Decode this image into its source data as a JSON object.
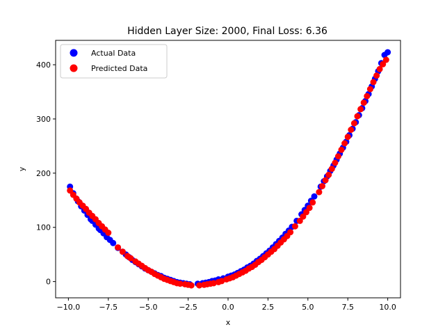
{
  "chart_data": {
    "type": "scatter",
    "title": "Hidden Layer Size: 2000, Final Loss: 6.36",
    "xlabel": "x",
    "ylabel": "y",
    "xlim": [
      -10.8,
      10.8
    ],
    "ylim": [
      -30,
      445
    ],
    "xticks": [
      -10.0,
      -7.5,
      -5.0,
      -2.5,
      0.0,
      2.5,
      5.0,
      7.5,
      10.0
    ],
    "xtick_labels": [
      "−10.0",
      "−7.5",
      "−5.0",
      "−2.5",
      "0.0",
      "2.5",
      "5.0",
      "7.5",
      "10.0"
    ],
    "yticks": [
      0,
      100,
      200,
      300,
      400
    ],
    "ytick_labels": [
      "0",
      "100",
      "200",
      "300",
      "400"
    ],
    "grid": false,
    "legend_position": "top-left",
    "series": [
      {
        "name": "Actual Data",
        "color": "#0000ff",
        "x": [
          -9.9,
          -9.7,
          -9.5,
          -9.4,
          -9.2,
          -9.0,
          -8.8,
          -8.6,
          -8.5,
          -8.3,
          -8.1,
          -8.0,
          -7.8,
          -7.6,
          -7.4,
          -7.2,
          -6.9,
          -6.6,
          -6.4,
          -6.2,
          -6.0,
          -5.8,
          -5.6,
          -5.4,
          -5.2,
          -5.0,
          -4.8,
          -4.6,
          -4.4,
          -4.2,
          -4.0,
          -3.8,
          -3.6,
          -3.4,
          -3.2,
          -3.0,
          -2.8,
          -2.6,
          -2.4,
          -1.9,
          -1.6,
          -1.4,
          -1.2,
          -1.0,
          -0.8,
          -0.6,
          -0.3,
          0.0,
          0.2,
          0.4,
          0.6,
          0.8,
          1.0,
          1.2,
          1.4,
          1.6,
          1.8,
          2.0,
          2.2,
          2.4,
          2.6,
          2.8,
          3.0,
          3.2,
          3.4,
          3.6,
          3.8,
          4.0,
          4.3,
          4.6,
          4.8,
          5.0,
          5.2,
          5.4,
          5.8,
          6.0,
          6.2,
          6.4,
          6.6,
          6.8,
          7.0,
          7.2,
          7.4,
          7.6,
          7.8,
          8.0,
          8.2,
          8.4,
          8.6,
          8.8,
          9.0,
          9.2,
          9.4,
          9.6,
          9.8,
          10.0
        ],
        "y": [
          175,
          163,
          153,
          148,
          139,
          131,
          123,
          115,
          112,
          105,
          98,
          95,
          89,
          82,
          77,
          71,
          62,
          55,
          50,
          45,
          40,
          36,
          32,
          28,
          24,
          21,
          18,
          15,
          12,
          10,
          7,
          5,
          3,
          1,
          -1,
          -2,
          -3,
          -4,
          -5,
          -4,
          -3,
          -2,
          -1,
          1,
          2,
          4,
          6,
          9,
          11,
          13,
          16,
          19,
          22,
          26,
          29,
          33,
          38,
          42,
          47,
          52,
          57,
          63,
          69,
          75,
          81,
          88,
          94,
          101,
          112,
          124,
          132,
          140,
          149,
          157,
          175,
          185,
          194,
          204,
          214,
          225,
          236,
          247,
          258,
          270,
          282,
          294,
          307,
          320,
          333,
          346,
          360,
          374,
          388,
          403,
          418,
          423
        ]
      },
      {
        "name": "Predicted Data",
        "color": "#ff0000",
        "x": [
          -9.9,
          -9.7,
          -9.5,
          -9.3,
          -9.1,
          -8.9,
          -8.7,
          -8.5,
          -8.3,
          -8.1,
          -7.9,
          -7.7,
          -7.5,
          -6.9,
          -6.6,
          -6.3,
          -6.1,
          -5.8,
          -5.6,
          -5.4,
          -5.2,
          -5.0,
          -4.8,
          -4.6,
          -4.4,
          -4.2,
          -4.0,
          -3.8,
          -3.6,
          -3.4,
          -3.2,
          -3.0,
          -2.7,
          -2.5,
          -2.3,
          -1.8,
          -1.5,
          -1.3,
          -1.1,
          -0.9,
          -0.6,
          -0.4,
          -0.1,
          0.1,
          0.3,
          0.5,
          0.7,
          0.9,
          1.1,
          1.3,
          1.5,
          1.7,
          1.9,
          2.1,
          2.3,
          2.5,
          2.7,
          2.9,
          3.1,
          3.3,
          3.5,
          3.7,
          3.9,
          4.2,
          4.5,
          4.7,
          4.9,
          5.1,
          5.3,
          5.7,
          5.9,
          6.1,
          6.3,
          6.5,
          6.7,
          6.9,
          7.1,
          7.3,
          7.5,
          7.7,
          7.9,
          8.1,
          8.3,
          8.5,
          8.7,
          8.9,
          9.1,
          9.3,
          9.5,
          9.7,
          9.9
        ],
        "y": [
          168,
          160,
          153,
          146,
          140,
          134,
          127,
          121,
          115,
          108,
          102,
          96,
          90,
          63,
          55,
          47,
          43,
          37,
          33,
          29,
          25,
          21,
          18,
          14,
          11,
          8,
          5,
          3,
          1,
          -1,
          -3,
          -4,
          -5,
          -6,
          -7,
          -7,
          -6,
          -5,
          -4,
          -3,
          -1,
          1,
          4,
          6,
          8,
          11,
          14,
          17,
          20,
          24,
          27,
          31,
          36,
          40,
          45,
          50,
          55,
          60,
          66,
          72,
          78,
          84,
          91,
          102,
          112,
          120,
          128,
          136,
          146,
          165,
          176,
          187,
          197,
          208,
          219,
          231,
          243,
          255,
          267,
          280,
          292,
          305,
          318,
          330,
          342,
          355,
          368,
          380,
          392,
          401,
          409
        ]
      }
    ]
  }
}
